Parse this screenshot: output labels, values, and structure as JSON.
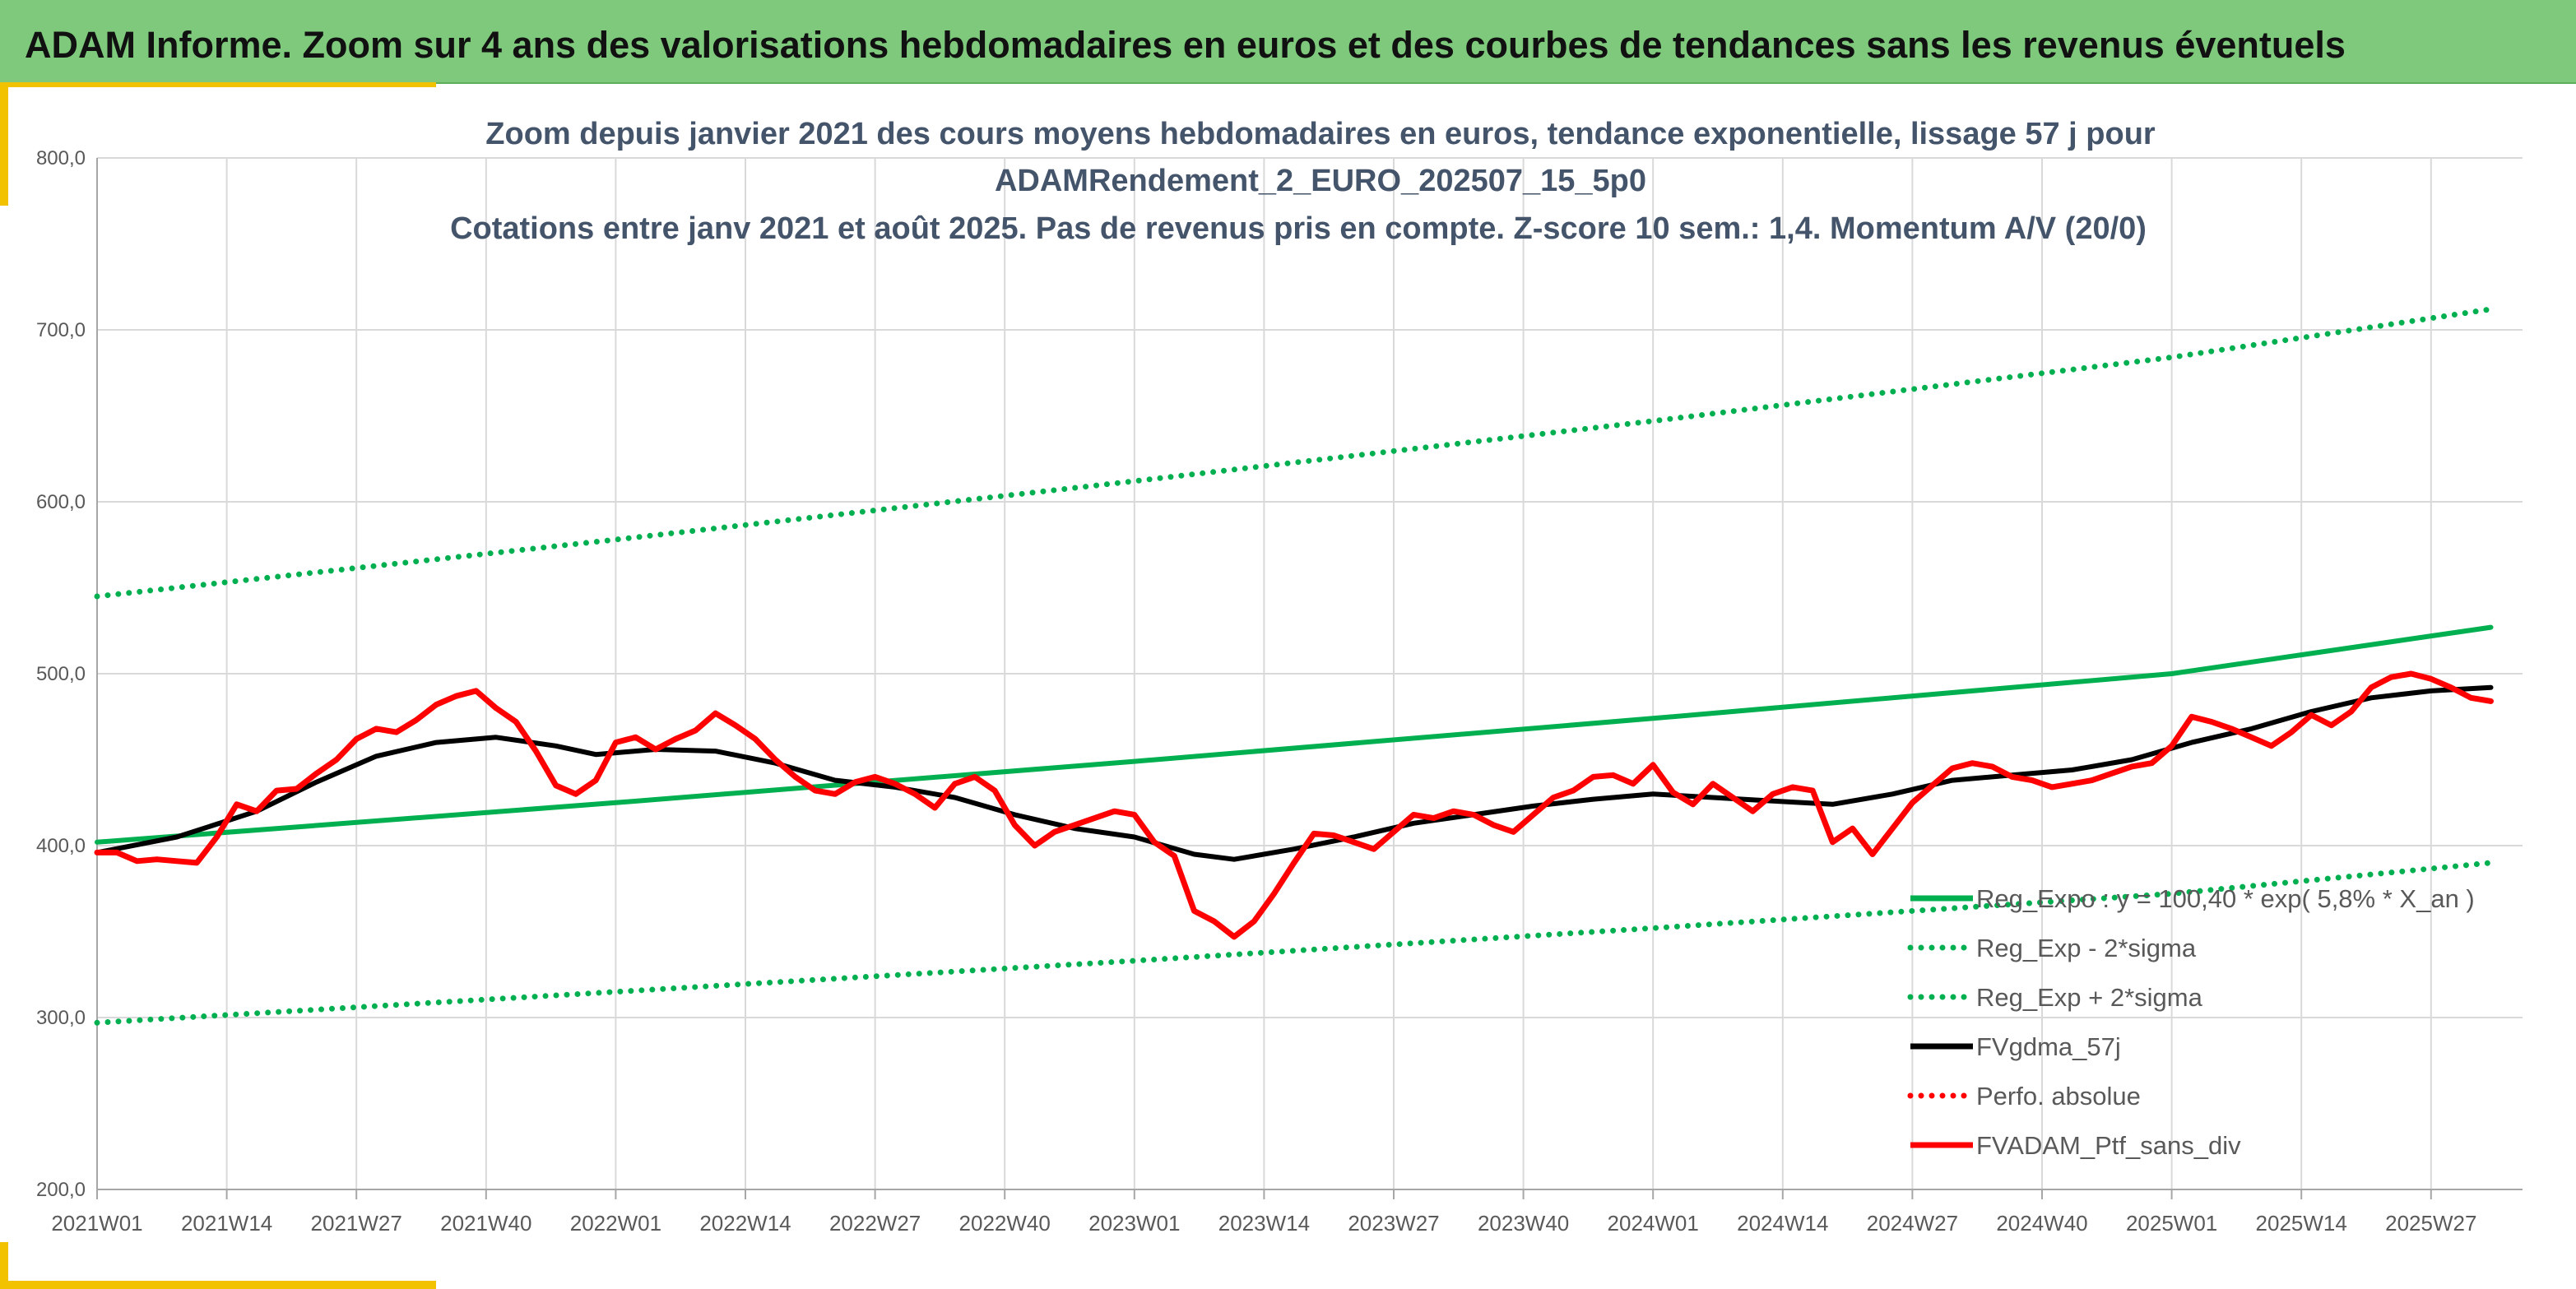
{
  "banner": {
    "title": "ADAM Informe. Zoom sur 4 ans des valorisations hebdomadaires en euros et des courbes de tendances sans les revenus éventuels"
  },
  "colors": {
    "banner": "#7ec97b",
    "trend": "#00b050",
    "smooth": "#000000",
    "price": "#ff0000",
    "accent": "#f2c200"
  },
  "chart_data": {
    "type": "line",
    "title_lines": [
      "Zoom depuis janvier 2021 des cours moyens hebdomadaires en euros, tendance exponentielle, lissage 57 j pour",
      "ADAMRendement_2_EURO_202507_15_5p0",
      "Cotations entre janv 2021 et août 2025. Pas de revenus pris en compte. Z-score 10 sem.: 1,4. Momentum A/V (20/0)"
    ],
    "ylim": [
      200,
      800
    ],
    "y_ticks": [
      "200,0",
      "300,0",
      "400,0",
      "500,0",
      "600,0",
      "700,0",
      "800,0"
    ],
    "x_tick_labels": [
      "2021W01",
      "2021W14",
      "2021W27",
      "2021W40",
      "2022W01",
      "2022W14",
      "2022W27",
      "2022W40",
      "2023W01",
      "2023W14",
      "2023W27",
      "2023W40",
      "2024W01",
      "2024W14",
      "2024W27",
      "2024W40",
      "2025W01",
      "2025W14",
      "2025W27"
    ],
    "weeks_per_label": 13,
    "n_weeks": 240,
    "grid": true,
    "legend_position": "bottom-right",
    "legend": [
      {
        "label": "Reg_Expo : y = 100,40 * exp( 5,8% *  X_an )",
        "style": "solid",
        "color": "#00b050"
      },
      {
        "label": "Reg_Exp - 2*sigma",
        "style": "dotted",
        "color": "#00b050"
      },
      {
        "label": "Reg_Exp + 2*sigma",
        "style": "dotted",
        "color": "#00b050"
      },
      {
        "label": "FVgdma_57j",
        "style": "solid",
        "color": "#000000"
      },
      {
        "label": "Perfo. absolue",
        "style": "dotted",
        "color": "#ff0000"
      },
      {
        "label": "FVADAM_Ptf_sans_div",
        "style": "solid",
        "color": "#ff0000"
      }
    ],
    "series": [
      {
        "name": "Reg_Expo : y = 100,40 * exp( 5,8% *  X_an )",
        "style": "solid",
        "color": "#00b050",
        "points": [
          [
            0,
            402
          ],
          [
            52,
            425
          ],
          [
            104,
            449
          ],
          [
            156,
            474
          ],
          [
            208,
            500
          ],
          [
            240,
            527
          ]
        ]
      },
      {
        "name": "Reg_Exp - 2*sigma",
        "style": "dotted",
        "color": "#00b050",
        "points": [
          [
            0,
            297
          ],
          [
            52,
            315
          ],
          [
            104,
            333
          ],
          [
            156,
            352
          ],
          [
            208,
            372
          ],
          [
            240,
            390
          ]
        ]
      },
      {
        "name": "Reg_Exp + 2*sigma",
        "style": "dotted",
        "color": "#00b050",
        "points": [
          [
            0,
            545
          ],
          [
            52,
            578
          ],
          [
            104,
            612
          ],
          [
            156,
            647
          ],
          [
            208,
            684
          ],
          [
            240,
            712
          ]
        ]
      },
      {
        "name": "FVgdma_57j",
        "style": "solid",
        "color": "#000000",
        "points": [
          [
            0,
            396
          ],
          [
            8,
            405
          ],
          [
            16,
            420
          ],
          [
            22,
            437
          ],
          [
            28,
            452
          ],
          [
            34,
            460
          ],
          [
            40,
            463
          ],
          [
            46,
            458
          ],
          [
            50,
            453
          ],
          [
            56,
            456
          ],
          [
            62,
            455
          ],
          [
            68,
            448
          ],
          [
            74,
            438
          ],
          [
            80,
            434
          ],
          [
            86,
            428
          ],
          [
            92,
            418
          ],
          [
            98,
            410
          ],
          [
            104,
            405
          ],
          [
            110,
            395
          ],
          [
            114,
            392
          ],
          [
            120,
            398
          ],
          [
            126,
            405
          ],
          [
            132,
            413
          ],
          [
            138,
            418
          ],
          [
            144,
            423
          ],
          [
            150,
            427
          ],
          [
            156,
            430
          ],
          [
            162,
            428
          ],
          [
            168,
            426
          ],
          [
            174,
            424
          ],
          [
            180,
            430
          ],
          [
            186,
            438
          ],
          [
            192,
            441
          ],
          [
            198,
            444
          ],
          [
            204,
            450
          ],
          [
            210,
            460
          ],
          [
            216,
            468
          ],
          [
            222,
            478
          ],
          [
            228,
            486
          ],
          [
            234,
            490
          ],
          [
            240,
            492
          ]
        ]
      },
      {
        "name": "FVADAM_Ptf_sans_div",
        "style": "solid",
        "color": "#ff0000",
        "points": [
          [
            0,
            396
          ],
          [
            2,
            396
          ],
          [
            4,
            391
          ],
          [
            6,
            392
          ],
          [
            8,
            391
          ],
          [
            10,
            390
          ],
          [
            12,
            405
          ],
          [
            14,
            424
          ],
          [
            16,
            420
          ],
          [
            18,
            432
          ],
          [
            20,
            433
          ],
          [
            22,
            442
          ],
          [
            24,
            450
          ],
          [
            26,
            462
          ],
          [
            28,
            468
          ],
          [
            30,
            466
          ],
          [
            32,
            473
          ],
          [
            34,
            482
          ],
          [
            36,
            487
          ],
          [
            38,
            490
          ],
          [
            40,
            480
          ],
          [
            42,
            472
          ],
          [
            44,
            455
          ],
          [
            46,
            435
          ],
          [
            48,
            430
          ],
          [
            50,
            438
          ],
          [
            52,
            460
          ],
          [
            54,
            463
          ],
          [
            56,
            456
          ],
          [
            58,
            462
          ],
          [
            60,
            467
          ],
          [
            62,
            477
          ],
          [
            64,
            470
          ],
          [
            66,
            462
          ],
          [
            68,
            450
          ],
          [
            70,
            440
          ],
          [
            72,
            432
          ],
          [
            74,
            430
          ],
          [
            76,
            437
          ],
          [
            78,
            440
          ],
          [
            80,
            436
          ],
          [
            82,
            430
          ],
          [
            84,
            422
          ],
          [
            86,
            436
          ],
          [
            88,
            440
          ],
          [
            90,
            432
          ],
          [
            92,
            412
          ],
          [
            94,
            400
          ],
          [
            96,
            408
          ],
          [
            98,
            412
          ],
          [
            100,
            416
          ],
          [
            102,
            420
          ],
          [
            104,
            418
          ],
          [
            106,
            402
          ],
          [
            108,
            394
          ],
          [
            110,
            362
          ],
          [
            112,
            356
          ],
          [
            114,
            347
          ],
          [
            116,
            356
          ],
          [
            118,
            372
          ],
          [
            120,
            390
          ],
          [
            122,
            407
          ],
          [
            124,
            406
          ],
          [
            126,
            402
          ],
          [
            128,
            398
          ],
          [
            130,
            408
          ],
          [
            132,
            418
          ],
          [
            134,
            416
          ],
          [
            136,
            420
          ],
          [
            138,
            418
          ],
          [
            140,
            412
          ],
          [
            142,
            408
          ],
          [
            144,
            418
          ],
          [
            146,
            428
          ],
          [
            148,
            432
          ],
          [
            150,
            440
          ],
          [
            152,
            441
          ],
          [
            154,
            436
          ],
          [
            156,
            447
          ],
          [
            158,
            431
          ],
          [
            160,
            424
          ],
          [
            162,
            436
          ],
          [
            164,
            428
          ],
          [
            166,
            420
          ],
          [
            168,
            430
          ],
          [
            170,
            434
          ],
          [
            172,
            432
          ],
          [
            174,
            402
          ],
          [
            176,
            410
          ],
          [
            178,
            395
          ],
          [
            180,
            410
          ],
          [
            182,
            425
          ],
          [
            184,
            435
          ],
          [
            186,
            445
          ],
          [
            188,
            448
          ],
          [
            190,
            446
          ],
          [
            192,
            440
          ],
          [
            194,
            438
          ],
          [
            196,
            434
          ],
          [
            198,
            436
          ],
          [
            200,
            438
          ],
          [
            202,
            442
          ],
          [
            204,
            446
          ],
          [
            206,
            448
          ],
          [
            208,
            458
          ],
          [
            210,
            475
          ],
          [
            212,
            472
          ],
          [
            214,
            468
          ],
          [
            216,
            463
          ],
          [
            218,
            458
          ],
          [
            220,
            466
          ],
          [
            222,
            476
          ],
          [
            224,
            470
          ],
          [
            226,
            478
          ],
          [
            228,
            492
          ],
          [
            230,
            498
          ],
          [
            232,
            500
          ],
          [
            234,
            497
          ],
          [
            236,
            492
          ],
          [
            238,
            486
          ],
          [
            240,
            484
          ]
        ]
      }
    ]
  }
}
